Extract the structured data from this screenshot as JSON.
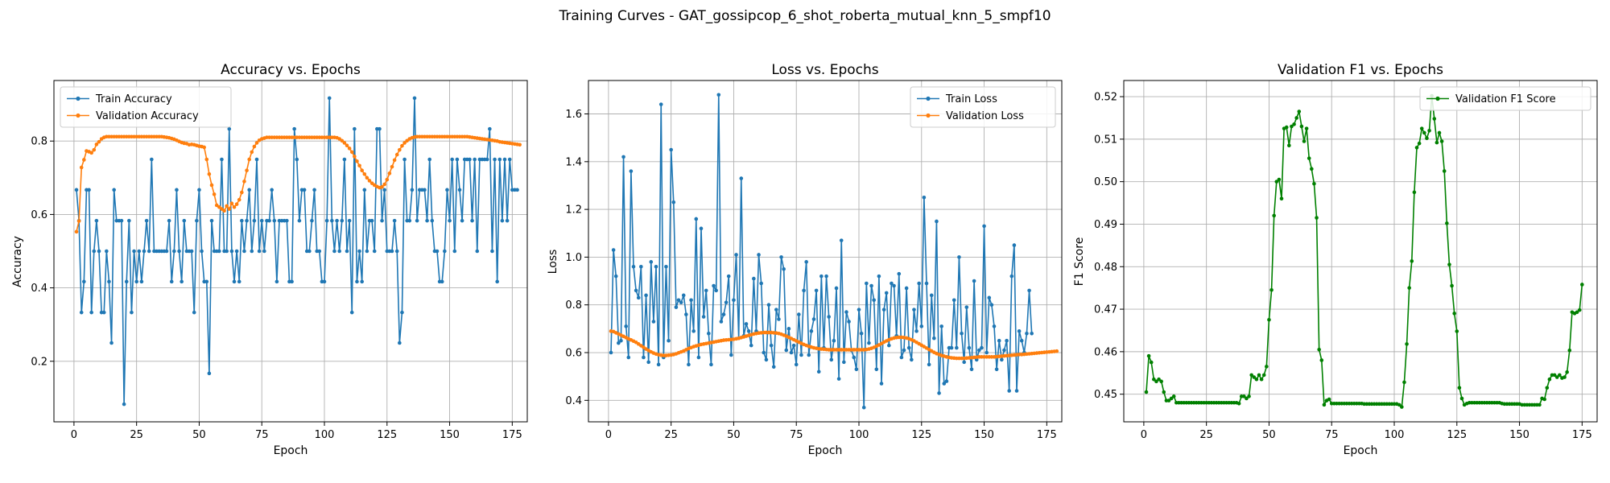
{
  "figure": {
    "suptitle": "Training Curves - GAT_gossipcop_6_shot_roberta_mutual_knn_5_smpf10"
  },
  "colors": {
    "train": "#1f77b4",
    "validation": "#ff7f0e",
    "f1": "#008000",
    "grid": "#b0b0b0"
  },
  "chart_data": [
    {
      "type": "line",
      "title": "Accuracy vs. Epochs",
      "xlabel": "Epoch",
      "ylabel": "Accuracy",
      "xlim": [
        -8,
        181
      ],
      "ylim": [
        0.035,
        0.965
      ],
      "xticks": [
        0,
        25,
        50,
        75,
        100,
        125,
        150,
        175
      ],
      "yticks": [
        0.2,
        0.4,
        0.6,
        0.8
      ],
      "ytick_decimals": 1,
      "grid": true,
      "legend": "upper left",
      "series": [
        {
          "name": "Train Accuracy",
          "color": "#1f77b4",
          "values": [
            0.667,
            0.583,
            0.333,
            0.417,
            0.667,
            0.667,
            0.333,
            0.5,
            0.583,
            0.5,
            0.333,
            0.333,
            0.5,
            0.417,
            0.25,
            0.667,
            0.583,
            0.583,
            0.583,
            0.083,
            0.417,
            0.583,
            0.333,
            0.5,
            0.417,
            0.5,
            0.417,
            0.5,
            0.583,
            0.5,
            0.75,
            0.5,
            0.5,
            0.5,
            0.5,
            0.5,
            0.5,
            0.583,
            0.417,
            0.5,
            0.667,
            0.5,
            0.417,
            0.583,
            0.5,
            0.5,
            0.5,
            0.333,
            0.583,
            0.667,
            0.5,
            0.417,
            0.417,
            0.167,
            0.583,
            0.5,
            0.5,
            0.5,
            0.75,
            0.5,
            0.5,
            0.833,
            0.5,
            0.417,
            0.5,
            0.417,
            0.583,
            0.5,
            0.583,
            0.667,
            0.5,
            0.583,
            0.75,
            0.5,
            0.583,
            0.5,
            0.583,
            0.583,
            0.667,
            0.583,
            0.417,
            0.583,
            0.583,
            0.583,
            0.583,
            0.417,
            0.417,
            0.833,
            0.75,
            0.583,
            0.667,
            0.667,
            0.5,
            0.5,
            0.583,
            0.667,
            0.5,
            0.5,
            0.417,
            0.417,
            0.583,
            0.917,
            0.583,
            0.5,
            0.583,
            0.5,
            0.583,
            0.75,
            0.5,
            0.583,
            0.333,
            0.833,
            0.417,
            0.5,
            0.417,
            0.667,
            0.5,
            0.583,
            0.583,
            0.5,
            0.833,
            0.833,
            0.583,
            0.667,
            0.5,
            0.5,
            0.5,
            0.583,
            0.5,
            0.25,
            0.333,
            0.75,
            0.583,
            0.583,
            0.667,
            0.917,
            0.583,
            0.667,
            0.667,
            0.667,
            0.583,
            0.75,
            0.583,
            0.5,
            0.5,
            0.417,
            0.417,
            0.5,
            0.667,
            0.583,
            0.75,
            0.5,
            0.75,
            0.667,
            0.583,
            0.75,
            0.75,
            0.75,
            0.583,
            0.75,
            0.5,
            0.75,
            0.75,
            0.75,
            0.75,
            0.833,
            0.5,
            0.75,
            0.417,
            0.75,
            0.583,
            0.75,
            0.583,
            0.75,
            0.667,
            0.667,
            0.667
          ]
        },
        {
          "name": "Validation Accuracy",
          "color": "#ff7f0e",
          "values": [
            0.553,
            0.582,
            0.728,
            0.749,
            0.773,
            0.771,
            0.768,
            0.776,
            0.791,
            0.798,
            0.806,
            0.81,
            0.812,
            0.812,
            0.812,
            0.812,
            0.812,
            0.812,
            0.812,
            0.812,
            0.812,
            0.812,
            0.812,
            0.812,
            0.812,
            0.812,
            0.812,
            0.812,
            0.812,
            0.812,
            0.812,
            0.812,
            0.812,
            0.812,
            0.812,
            0.811,
            0.81,
            0.809,
            0.807,
            0.805,
            0.802,
            0.799,
            0.796,
            0.794,
            0.793,
            0.79,
            0.791,
            0.79,
            0.788,
            0.786,
            0.785,
            0.783,
            0.75,
            0.71,
            0.68,
            0.655,
            0.625,
            0.62,
            0.615,
            0.61,
            0.623,
            0.615,
            0.63,
            0.62,
            0.628,
            0.64,
            0.66,
            0.69,
            0.72,
            0.75,
            0.77,
            0.785,
            0.795,
            0.802,
            0.806,
            0.808,
            0.81,
            0.81,
            0.81,
            0.81,
            0.81,
            0.81,
            0.81,
            0.81,
            0.81,
            0.81,
            0.81,
            0.81,
            0.81,
            0.81,
            0.81,
            0.81,
            0.81,
            0.81,
            0.81,
            0.81,
            0.81,
            0.81,
            0.81,
            0.81,
            0.81,
            0.81,
            0.81,
            0.81,
            0.809,
            0.806,
            0.801,
            0.795,
            0.788,
            0.78,
            0.77,
            0.758,
            0.745,
            0.733,
            0.72,
            0.71,
            0.7,
            0.692,
            0.685,
            0.68,
            0.676,
            0.673,
            0.675,
            0.682,
            0.695,
            0.712,
            0.73,
            0.748,
            0.763,
            0.776,
            0.787,
            0.795,
            0.801,
            0.806,
            0.809,
            0.811,
            0.812,
            0.812,
            0.812,
            0.812,
            0.812,
            0.812,
            0.812,
            0.812,
            0.812,
            0.812,
            0.812,
            0.812,
            0.812,
            0.812,
            0.812,
            0.812,
            0.812,
            0.812,
            0.812,
            0.812,
            0.812,
            0.811,
            0.81,
            0.809,
            0.808,
            0.807,
            0.806,
            0.805,
            0.804,
            0.803,
            0.802,
            0.801,
            0.8,
            0.798,
            0.797,
            0.796,
            0.795,
            0.794,
            0.793,
            0.792,
            0.791,
            0.79
          ]
        }
      ]
    },
    {
      "type": "line",
      "title": "Loss vs. Epochs",
      "xlabel": "Epoch",
      "ylabel": "Loss",
      "xlim": [
        -8,
        181
      ],
      "ylim": [
        0.31,
        1.74
      ],
      "xticks": [
        0,
        25,
        50,
        75,
        100,
        125,
        150,
        175
      ],
      "yticks": [
        0.4,
        0.6,
        0.8,
        1.0,
        1.2,
        1.4,
        1.6
      ],
      "ytick_decimals": 1,
      "grid": true,
      "legend": "upper right",
      "series": [
        {
          "name": "Train Loss",
          "color": "#1f77b4",
          "values": [
            0.6,
            1.03,
            0.92,
            0.64,
            0.65,
            1.42,
            0.71,
            0.58,
            1.36,
            0.96,
            0.86,
            0.83,
            0.96,
            0.58,
            0.84,
            0.56,
            0.98,
            0.73,
            0.96,
            0.55,
            1.64,
            0.58,
            0.96,
            0.65,
            1.45,
            1.23,
            0.79,
            0.82,
            0.81,
            0.84,
            0.76,
            0.55,
            0.82,
            0.69,
            1.16,
            0.58,
            1.12,
            0.75,
            0.86,
            0.68,
            0.55,
            0.88,
            0.86,
            1.68,
            0.73,
            0.76,
            0.81,
            0.92,
            0.59,
            0.82,
            1.01,
            0.66,
            1.33,
            0.67,
            0.72,
            0.69,
            0.63,
            0.91,
            0.69,
            1.01,
            0.89,
            0.6,
            0.57,
            0.8,
            0.63,
            0.54,
            0.78,
            0.74,
            1.0,
            0.95,
            0.61,
            0.7,
            0.6,
            0.63,
            0.55,
            0.76,
            0.59,
            0.86,
            0.98,
            0.59,
            0.69,
            0.74,
            0.86,
            0.52,
            0.92,
            0.62,
            0.92,
            0.75,
            0.57,
            0.65,
            0.87,
            0.49,
            1.07,
            0.56,
            0.77,
            0.73,
            0.61,
            0.58,
            0.53,
            0.78,
            0.68,
            0.37,
            0.89,
            0.64,
            0.88,
            0.82,
            0.53,
            0.92,
            0.47,
            0.78,
            0.85,
            0.63,
            0.89,
            0.88,
            0.67,
            0.93,
            0.58,
            0.61,
            0.87,
            0.62,
            0.57,
            0.78,
            0.69,
            0.89,
            0.71,
            1.25,
            0.89,
            0.55,
            0.84,
            0.66,
            1.15,
            0.43,
            0.71,
            0.47,
            0.48,
            0.62,
            0.62,
            0.82,
            0.62,
            1.0,
            0.68,
            0.56,
            0.79,
            0.62,
            0.53,
            0.9,
            0.57,
            0.61,
            0.62,
            1.13,
            0.6,
            0.83,
            0.8,
            0.71,
            0.53,
            0.65,
            0.57,
            0.61,
            0.65,
            0.44,
            0.92,
            1.05,
            0.44,
            0.69,
            0.65,
            0.6,
            0.68,
            0.86,
            0.68
          ]
        },
        {
          "name": "Validation Loss",
          "color": "#ff7f0e",
          "values": [
            0.69,
            0.688,
            0.683,
            0.678,
            0.673,
            0.668,
            0.663,
            0.658,
            0.653,
            0.648,
            0.643,
            0.636,
            0.629,
            0.622,
            0.615,
            0.609,
            0.603,
            0.598,
            0.594,
            0.591,
            0.589,
            0.588,
            0.588,
            0.589,
            0.59,
            0.592,
            0.595,
            0.599,
            0.603,
            0.607,
            0.612,
            0.617,
            0.621,
            0.625,
            0.628,
            0.631,
            0.634,
            0.636,
            0.638,
            0.64,
            0.642,
            0.644,
            0.646,
            0.648,
            0.65,
            0.652,
            0.653,
            0.654,
            0.655,
            0.656,
            0.658,
            0.66,
            0.663,
            0.666,
            0.669,
            0.672,
            0.675,
            0.678,
            0.68,
            0.682,
            0.683,
            0.684,
            0.684,
            0.684,
            0.684,
            0.683,
            0.682,
            0.68,
            0.677,
            0.673,
            0.669,
            0.664,
            0.659,
            0.654,
            0.649,
            0.644,
            0.639,
            0.634,
            0.63,
            0.626,
            0.623,
            0.62,
            0.618,
            0.616,
            0.615,
            0.614,
            0.613,
            0.612,
            0.612,
            0.612,
            0.612,
            0.612,
            0.612,
            0.612,
            0.612,
            0.612,
            0.612,
            0.612,
            0.612,
            0.612,
            0.612,
            0.612,
            0.613,
            0.615,
            0.618,
            0.622,
            0.627,
            0.632,
            0.638,
            0.644,
            0.649,
            0.654,
            0.658,
            0.661,
            0.663,
            0.664,
            0.664,
            0.663,
            0.661,
            0.658,
            0.654,
            0.649,
            0.643,
            0.637,
            0.631,
            0.625,
            0.619,
            0.613,
            0.607,
            0.601,
            0.596,
            0.592,
            0.588,
            0.585,
            0.582,
            0.58,
            0.578,
            0.577,
            0.576,
            0.576,
            0.576,
            0.576,
            0.577,
            0.578,
            0.579,
            0.58,
            0.581,
            0.582,
            0.582,
            0.582,
            0.582,
            0.582,
            0.582,
            0.582,
            0.583,
            0.584,
            0.585,
            0.586,
            0.587,
            0.588,
            0.589,
            0.59,
            0.591,
            0.592,
            0.592,
            0.593,
            0.594,
            0.595,
            0.596,
            0.597,
            0.598,
            0.599,
            0.6,
            0.601,
            0.602,
            0.603,
            0.604,
            0.605,
            0.606
          ]
        }
      ]
    },
    {
      "type": "line",
      "title": "Validation F1 vs. Epochs",
      "xlabel": "Epoch",
      "ylabel": "F1 Score",
      "xlim": [
        -8,
        181
      ],
      "ylim": [
        0.4435,
        0.5238
      ],
      "xticks": [
        0,
        25,
        50,
        75,
        100,
        125,
        150,
        175
      ],
      "yticks": [
        0.45,
        0.46,
        0.47,
        0.48,
        0.49,
        0.5,
        0.51,
        0.52
      ],
      "ytick_decimals": 2,
      "grid": true,
      "legend": "upper right",
      "series": [
        {
          "name": "Validation F1 Score",
          "color": "#008000",
          "values": [
            0.4505,
            0.459,
            0.4575,
            0.4535,
            0.453,
            0.4535,
            0.453,
            0.4505,
            0.4485,
            0.4485,
            0.449,
            0.4495,
            0.448,
            0.448,
            0.448,
            0.448,
            0.448,
            0.448,
            0.448,
            0.448,
            0.448,
            0.448,
            0.448,
            0.448,
            0.448,
            0.448,
            0.448,
            0.448,
            0.448,
            0.448,
            0.448,
            0.448,
            0.448,
            0.448,
            0.448,
            0.448,
            0.448,
            0.4478,
            0.4495,
            0.4495,
            0.449,
            0.4495,
            0.4545,
            0.454,
            0.4535,
            0.4545,
            0.4535,
            0.4545,
            0.4565,
            0.4675,
            0.4745,
            0.492,
            0.5,
            0.5005,
            0.496,
            0.5125,
            0.5128,
            0.5085,
            0.513,
            0.5135,
            0.515,
            0.5165,
            0.513,
            0.5095,
            0.5125,
            0.5055,
            0.503,
            0.4995,
            0.4915,
            0.4605,
            0.458,
            0.4475,
            0.4485,
            0.4488,
            0.4478,
            0.4478,
            0.4478,
            0.4478,
            0.4478,
            0.4478,
            0.4478,
            0.4478,
            0.4478,
            0.4478,
            0.4478,
            0.4478,
            0.4478,
            0.4477,
            0.4477,
            0.4477,
            0.4477,
            0.4477,
            0.4477,
            0.4477,
            0.4477,
            0.4477,
            0.4477,
            0.4477,
            0.4477,
            0.4477,
            0.4477,
            0.4475,
            0.447,
            0.4528,
            0.4618,
            0.475,
            0.4813,
            0.4975,
            0.508,
            0.509,
            0.5125,
            0.5115,
            0.5102,
            0.512,
            0.5202,
            0.5148,
            0.5092,
            0.5115,
            0.5095,
            0.5025,
            0.4902,
            0.4805,
            0.4755,
            0.469,
            0.4648,
            0.4515,
            0.449,
            0.4475,
            0.4478,
            0.448,
            0.448,
            0.448,
            0.448,
            0.448,
            0.448,
            0.448,
            0.448,
            0.448,
            0.448,
            0.448,
            0.448,
            0.448,
            0.4478,
            0.4477,
            0.4477,
            0.4477,
            0.4477,
            0.4477,
            0.4477,
            0.4477,
            0.4475,
            0.4475,
            0.4475,
            0.4475,
            0.4475,
            0.4475,
            0.4475,
            0.4475,
            0.449,
            0.4488,
            0.4515,
            0.4535,
            0.4545,
            0.4545,
            0.454,
            0.4545,
            0.4538,
            0.454,
            0.4552,
            0.4603,
            0.4693,
            0.469,
            0.4693,
            0.4698,
            0.4758
          ]
        }
      ]
    }
  ]
}
